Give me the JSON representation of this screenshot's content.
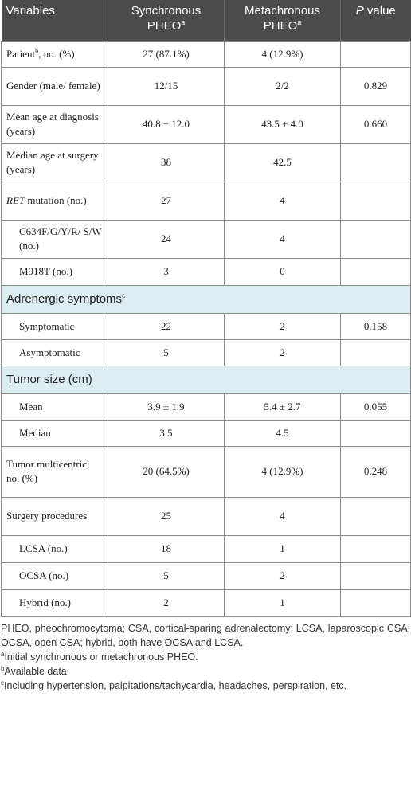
{
  "header": {
    "col1": "Variables",
    "col2": "Synchronous PHEO",
    "col2_sup": "a",
    "col3": "Metachronous PHEO",
    "col3_sup": "a",
    "col4_italic": "P",
    "col4_rest": " value"
  },
  "rows": {
    "patient": {
      "label": "Patient",
      "sup": "b",
      "label_rest": ", no. (%)",
      "sync": "27 (87.1%)",
      "meta": "4 (12.9%)",
      "p": ""
    },
    "gender": {
      "label": "Gender (male/ female)",
      "sync": "12/15",
      "meta": "2/2",
      "p": "0.829"
    },
    "mean_age": {
      "label": "Mean age at diagnosis (years)",
      "sync": "40.8 ± 12.0",
      "meta": "43.5 ± 4.0",
      "p": "0.660"
    },
    "median_age": {
      "label": "Median age at surgery (years)",
      "sync": "38",
      "meta": "42.5",
      "p": ""
    },
    "ret": {
      "label_italic": "RET",
      "label_rest": " mutation (no.)",
      "sync": "27",
      "meta": "4",
      "p": ""
    },
    "c634": {
      "label": "C634F/G/Y/R/ S/W (no.)",
      "sync": "24",
      "meta": "4",
      "p": ""
    },
    "m918": {
      "label": "M918T (no.)",
      "sync": "3",
      "meta": "0",
      "p": ""
    },
    "adrenergic_section": {
      "label": "Adrenergic symptoms",
      "sup": "c"
    },
    "symptomatic": {
      "label": "Symptomatic",
      "sync": "22",
      "meta": "2",
      "p": "0.158"
    },
    "asymptomatic": {
      "label": "Asymptomatic",
      "sync": "5",
      "meta": "2",
      "p": ""
    },
    "tumor_section": {
      "label": "Tumor size (cm)"
    },
    "mean": {
      "label": "Mean",
      "sync": "3.9 ± 1.9",
      "meta": "5.4 ± 2.7",
      "p": "0.055"
    },
    "median": {
      "label": "Median",
      "sync": "3.5",
      "meta": "4.5",
      "p": ""
    },
    "multicentric": {
      "label": "Tumor multicentric, no. (%)",
      "sync": "20 (64.5%)",
      "meta": "4 (12.9%)",
      "p": "0.248"
    },
    "surgery": {
      "label": "Surgery procedures",
      "sync": "25",
      "meta": "4",
      "p": ""
    },
    "lcsa": {
      "label": "LCSA (no.)",
      "sync": "18",
      "meta": "1",
      "p": ""
    },
    "ocsa": {
      "label": "OCSA (no.)",
      "sync": "5",
      "meta": "2",
      "p": ""
    },
    "hybrid": {
      "label": "Hybrid (no.)",
      "sync": "2",
      "meta": "1",
      "p": ""
    }
  },
  "footnotes": {
    "abbrev": "PHEO, pheochromocytoma; CSA, cortical-sparing adrenalectomy; LCSA, laparoscopic CSA; OCSA, open CSA; hybrid, both have OCSA and LCSA.",
    "a_mark": "a",
    "a_text": "Initial synchronous or metachronous PHEO.",
    "b_mark": "b",
    "b_text": "Available data.",
    "c_mark": "c",
    "c_text": "Including hypertension, palpitations/tachycardia, headaches, perspiration, etc."
  }
}
